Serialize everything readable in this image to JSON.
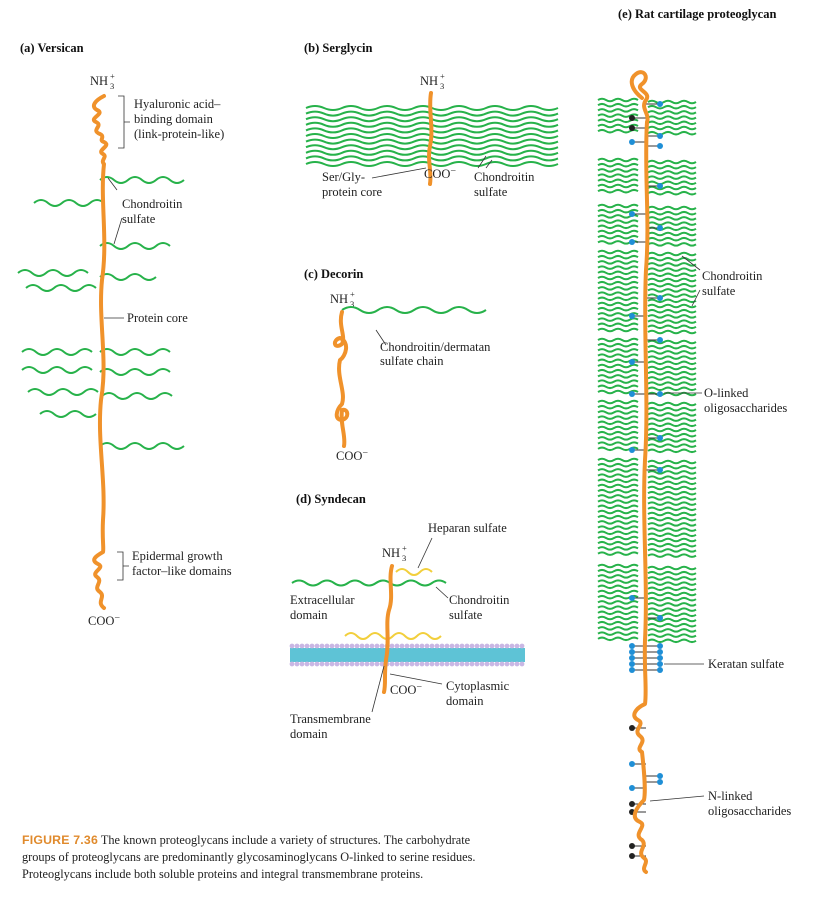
{
  "panels": {
    "a": {
      "title": "(a) Versican",
      "n_terminus": "NH3+",
      "c_terminus": "COO–",
      "label_hyaluronic": [
        "Hyaluronic acid–",
        "binding domain",
        "(link-protein-like)"
      ],
      "label_chondroitin": [
        "Chondroitin",
        "sulfate"
      ],
      "label_core": "Protein core",
      "label_egf": [
        "Epidermal growth",
        "factor–like domains"
      ]
    },
    "b": {
      "title": "(b) Serglycin",
      "n_terminus": "NH3+",
      "c_terminus": "COO–",
      "label_core": [
        "Ser/Gly-",
        "protein core"
      ],
      "label_chondroitin": [
        "Chondroitin",
        "sulfate"
      ]
    },
    "c": {
      "title": "(c) Decorin",
      "n_terminus": "NH3+",
      "c_terminus": "COO–",
      "label_chain": [
        "Chondroitin/dermatan",
        "sulfate chain"
      ]
    },
    "d": {
      "title": "(d) Syndecan",
      "n_terminus": "NH3+",
      "c_terminus": "COO–",
      "label_heparan": "Heparan sulfate",
      "label_chondroitin": [
        "Chondroitin",
        "sulfate"
      ],
      "label_extracellular": [
        "Extracellular",
        "domain"
      ],
      "label_cytoplasmic": [
        "Cytoplasmic",
        "domain"
      ],
      "label_transmembrane": [
        "Transmembrane",
        "domain"
      ]
    },
    "e": {
      "title": "(e) Rat cartilage proteoglycan",
      "label_chondroitin": [
        "Chondroitin",
        "sulfate"
      ],
      "label_olinked": [
        "O-linked",
        "oligosaccharides"
      ],
      "label_keratan": "Keratan sulfate",
      "label_nlinked": [
        "N-linked",
        "oligosaccharides"
      ]
    }
  },
  "caption": {
    "label": "FIGURE 7.36",
    "text": "The known proteoglycans include a variety of structures. The carbohydrate groups of proteoglycans are predominantly glycosaminoglycans O-linked to serine residues. Proteoglycans include both soluble proteins and integral transmembrane proteins."
  },
  "colors": {
    "protein_core": "#f0922b",
    "glycosaminoglycan": "#27b24a",
    "heparan": "#f2cf3c",
    "oligosaccharide_blue": "#1f8fd6",
    "oligosaccharide_black": "#222222",
    "membrane_blue": "#5ec3d6",
    "membrane_lavender": "#c9b7e4"
  }
}
